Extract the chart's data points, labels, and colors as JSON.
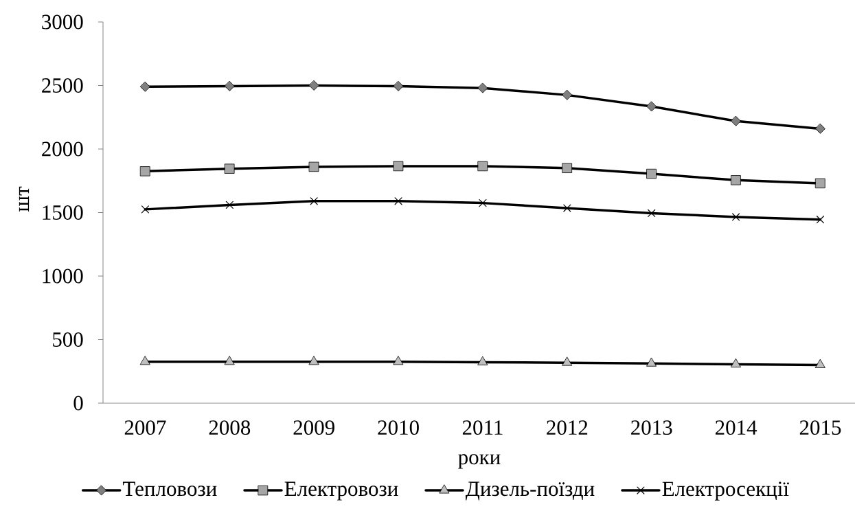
{
  "chart_data": {
    "type": "line",
    "xlabel": "роки",
    "ylabel": "шт",
    "categories": [
      "2007",
      "2008",
      "2009",
      "2010",
      "2011",
      "2012",
      "2013",
      "2014",
      "2015"
    ],
    "ylim": [
      0,
      3000
    ],
    "yticks": [
      0,
      500,
      1000,
      1500,
      2000,
      2500,
      3000
    ],
    "legend": "bottom",
    "line_style": "solid",
    "series": [
      {
        "name": "Тепловози",
        "color": "#000000",
        "marker": "diamond",
        "values": [
          2490,
          2495,
          2500,
          2495,
          2480,
          2425,
          2335,
          2220,
          2160
        ]
      },
      {
        "name": "Електровози",
        "color": "#000000",
        "marker": "square",
        "values": [
          1825,
          1845,
          1860,
          1865,
          1865,
          1850,
          1805,
          1755,
          1730
        ]
      },
      {
        "name": "Дизель-поїзди",
        "color": "#000000",
        "marker": "triangle",
        "values": [
          325,
          325,
          325,
          325,
          322,
          318,
          312,
          305,
          300
        ]
      },
      {
        "name": "Електросекції",
        "color": "#000000",
        "marker": "cross",
        "values": [
          1525,
          1560,
          1590,
          1590,
          1575,
          1535,
          1495,
          1465,
          1445
        ]
      }
    ]
  }
}
